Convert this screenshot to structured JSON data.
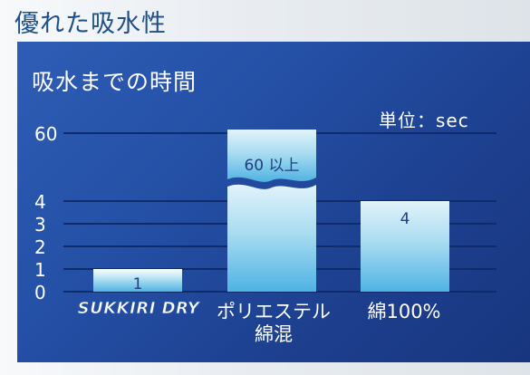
{
  "heading": "優れた吸水性",
  "chart_data": {
    "type": "bar",
    "title": "吸水までの時間",
    "unit_label": "単位：sec",
    "xlabel": "",
    "ylabel": "",
    "categories": [
      "SUKKIRI DRY",
      "ポリエステル綿混",
      "綿100%"
    ],
    "category_lines": [
      [
        "ポリエステル",
        "綿混"
      ],
      [
        "綿100%"
      ]
    ],
    "values": [
      1,
      60,
      4
    ],
    "data_labels": [
      "1",
      "60 以上",
      "4"
    ],
    "y_ticks": [
      0,
      1,
      2,
      3,
      4,
      60
    ],
    "ylim": [
      0,
      60
    ],
    "axis_break": true,
    "grid": true,
    "colors": {
      "bar_light": "#ffffff",
      "bar_mid": "#b9e2f3",
      "bar_deep": "#4fb3e3",
      "axis_text": "#ffffff",
      "data_label": "#1f3f7f",
      "grid": "#0f2c6a"
    }
  }
}
